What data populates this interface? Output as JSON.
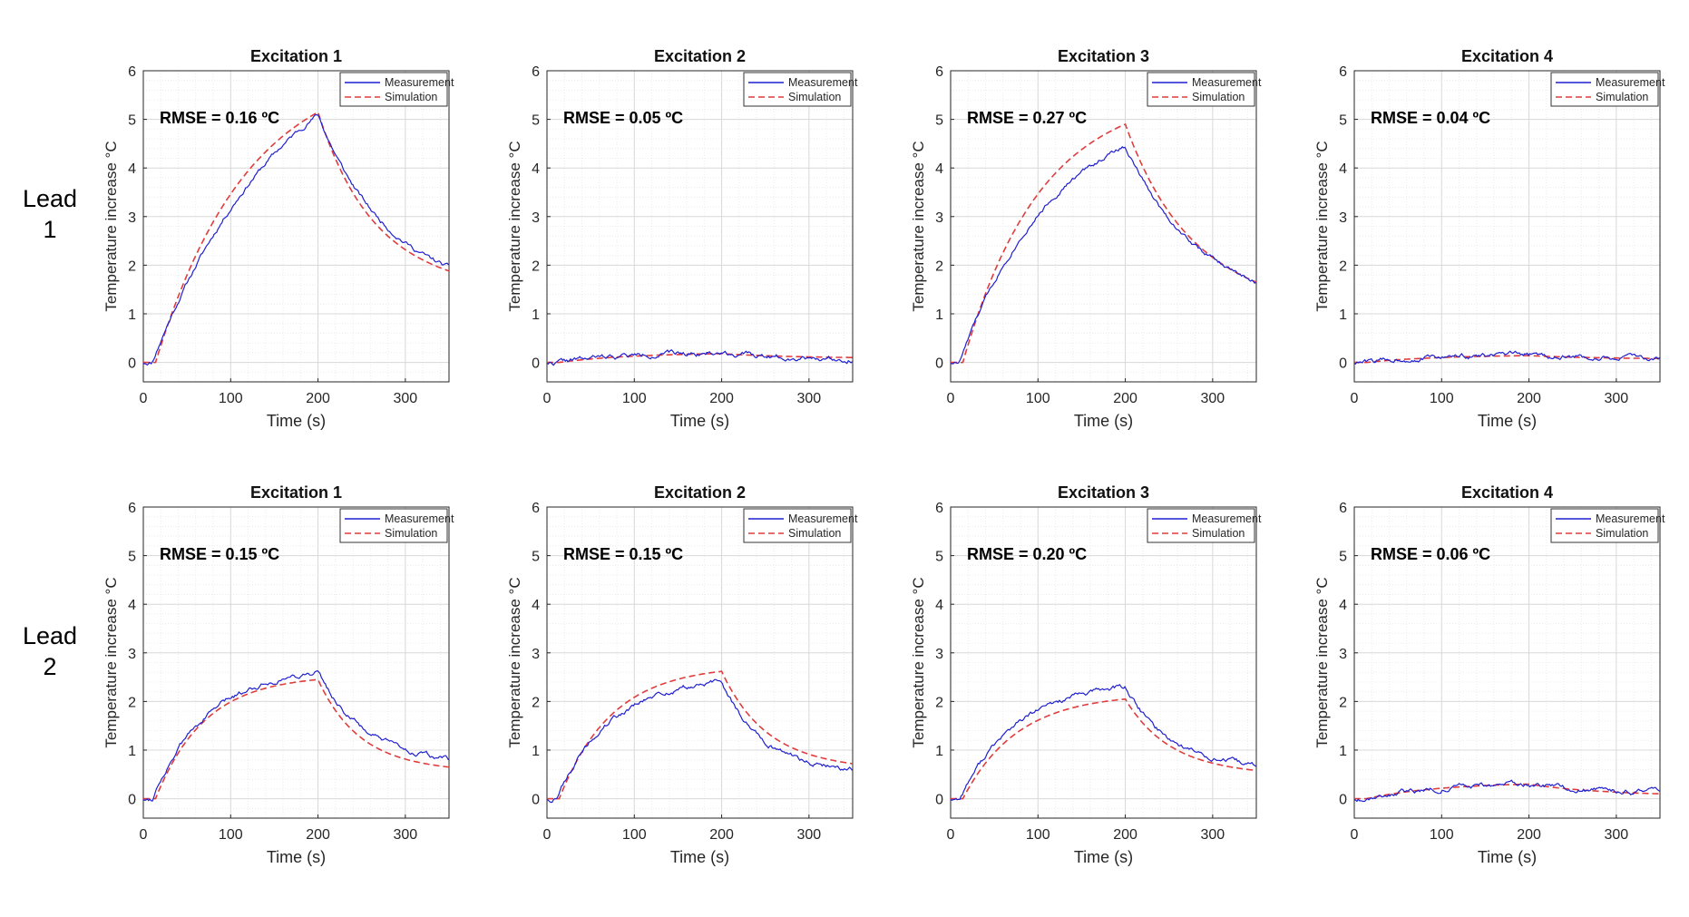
{
  "row_labels": [
    {
      "word": "Lead",
      "num": "1"
    },
    {
      "word": "Lead",
      "num": "2"
    }
  ],
  "colors": {
    "measurement": "#1f1fd0",
    "simulation": "#e03c3c",
    "grid_major": "#d8d8d8",
    "grid_minor": "#ececec",
    "axis": "#262626"
  },
  "chart_data": [
    {
      "type": "line",
      "row": 1,
      "col": 1,
      "title": "Excitation 1",
      "xlabel": "Time (s)",
      "ylabel": "Temperature increase °C",
      "xlim": [
        0,
        350
      ],
      "ylim": [
        -0.4,
        6
      ],
      "xticks": [
        0,
        100,
        200,
        300
      ],
      "yticks": [
        0,
        1,
        2,
        3,
        4,
        5,
        6
      ],
      "legend": [
        "Measurement",
        "Simulation"
      ],
      "legend_position": "top-right",
      "annotation": "RMSE = 0.16 ºC",
      "rise_end": 200,
      "peak_meas": 5.1,
      "end_meas": 1.95,
      "rise_k": 0.55,
      "decay_k": 1.05,
      "noise": 0.04,
      "seed": 11,
      "peak_sim": 5.15,
      "end_sim": 1.88,
      "sim_rise_k": 0.8,
      "sim_decay_k": 1.25
    },
    {
      "type": "line",
      "row": 1,
      "col": 2,
      "title": "Excitation 2",
      "xlabel": "Time (s)",
      "ylabel": "Temperature increase °C",
      "xlim": [
        0,
        350
      ],
      "ylim": [
        -0.4,
        6
      ],
      "xticks": [
        0,
        100,
        200,
        300
      ],
      "yticks": [
        0,
        1,
        2,
        3,
        4,
        5,
        6
      ],
      "legend": [
        "Measurement",
        "Simulation"
      ],
      "legend_position": "top-right",
      "annotation": "RMSE = 0.05 ºC",
      "rise_end": 200,
      "peak_meas": 0.2,
      "end_meas": 0.08,
      "rise_k": 1.0,
      "decay_k": 1.0,
      "noise": 0.045,
      "seed": 22,
      "peak_sim": 0.18,
      "end_sim": 0.1,
      "sim_rise_k": 1.0,
      "sim_decay_k": 1.0
    },
    {
      "type": "line",
      "row": 1,
      "col": 3,
      "title": "Excitation 3",
      "xlabel": "Time (s)",
      "ylabel": "Temperature increase °C",
      "xlim": [
        0,
        350
      ],
      "ylim": [
        -0.4,
        6
      ],
      "xticks": [
        0,
        100,
        200,
        300
      ],
      "yticks": [
        0,
        1,
        2,
        3,
        4,
        5,
        6
      ],
      "legend": [
        "Measurement",
        "Simulation"
      ],
      "legend_position": "top-right",
      "annotation": "RMSE = 0.27 ºC",
      "rise_end": 200,
      "peak_meas": 4.45,
      "end_meas": 1.65,
      "rise_k": 0.8,
      "decay_k": 1.0,
      "noise": 0.04,
      "seed": 33,
      "peak_sim": 4.9,
      "end_sim": 1.65,
      "sim_rise_k": 0.95,
      "sim_decay_k": 1.1
    },
    {
      "type": "line",
      "row": 1,
      "col": 4,
      "title": "Excitation 4",
      "xlabel": "Time (s)",
      "ylabel": "Temperature increase °C",
      "xlim": [
        0,
        350
      ],
      "ylim": [
        -0.4,
        6
      ],
      "xticks": [
        0,
        100,
        200,
        300
      ],
      "yticks": [
        0,
        1,
        2,
        3,
        4,
        5,
        6
      ],
      "legend": [
        "Measurement",
        "Simulation"
      ],
      "legend_position": "top-right",
      "annotation": "RMSE = 0.04 ºC",
      "rise_end": 200,
      "peak_meas": 0.15,
      "end_meas": 0.08,
      "rise_k": 1.0,
      "decay_k": 1.0,
      "noise": 0.045,
      "seed": 44,
      "peak_sim": 0.14,
      "end_sim": 0.08,
      "sim_rise_k": 1.0,
      "sim_decay_k": 1.0
    },
    {
      "type": "line",
      "row": 2,
      "col": 1,
      "title": "Excitation 1",
      "xlabel": "Time (s)",
      "ylabel": "Temperature increase °C",
      "xlim": [
        0,
        350
      ],
      "ylim": [
        -0.4,
        6
      ],
      "xticks": [
        0,
        100,
        200,
        300
      ],
      "yticks": [
        0,
        1,
        2,
        3,
        4,
        5,
        6
      ],
      "legend": [
        "Measurement",
        "Simulation"
      ],
      "legend_position": "top-right",
      "annotation": "RMSE = 0.15 ºC",
      "rise_end": 200,
      "peak_meas": 2.6,
      "end_meas": 0.8,
      "rise_k": 1.35,
      "decay_k": 1.4,
      "noise": 0.045,
      "seed": 55,
      "peak_sim": 2.45,
      "end_sim": 0.65,
      "sim_rise_k": 1.5,
      "sim_decay_k": 1.6
    },
    {
      "type": "line",
      "row": 2,
      "col": 2,
      "title": "Excitation 2",
      "xlabel": "Time (s)",
      "ylabel": "Temperature increase °C",
      "xlim": [
        0,
        350
      ],
      "ylim": [
        -0.4,
        6
      ],
      "xticks": [
        0,
        100,
        200,
        300
      ],
      "yticks": [
        0,
        1,
        2,
        3,
        4,
        5,
        6
      ],
      "legend": [
        "Measurement",
        "Simulation"
      ],
      "legend_position": "top-right",
      "annotation": "RMSE = 0.15 ºC",
      "rise_end": 200,
      "peak_meas": 2.4,
      "end_meas": 0.6,
      "rise_k": 1.35,
      "decay_k": 1.6,
      "noise": 0.045,
      "seed": 66,
      "peak_sim": 2.62,
      "end_sim": 0.72,
      "sim_rise_k": 1.4,
      "sim_decay_k": 1.5
    },
    {
      "type": "line",
      "row": 2,
      "col": 3,
      "title": "Excitation 3",
      "xlabel": "Time (s)",
      "ylabel": "Temperature increase °C",
      "xlim": [
        0,
        350
      ],
      "ylim": [
        -0.4,
        6
      ],
      "xticks": [
        0,
        100,
        200,
        300
      ],
      "yticks": [
        0,
        1,
        2,
        3,
        4,
        5,
        6
      ],
      "legend": [
        "Measurement",
        "Simulation"
      ],
      "legend_position": "top-right",
      "annotation": "RMSE = 0.20 ºC",
      "rise_end": 200,
      "peak_meas": 2.3,
      "end_meas": 0.68,
      "rise_k": 1.3,
      "decay_k": 1.5,
      "noise": 0.045,
      "seed": 77,
      "peak_sim": 2.05,
      "end_sim": 0.58,
      "sim_rise_k": 1.35,
      "sim_decay_k": 1.5
    },
    {
      "type": "line",
      "row": 2,
      "col": 4,
      "title": "Excitation 4",
      "xlabel": "Time (s)",
      "ylabel": "Temperature increase °C",
      "xlim": [
        0,
        350
      ],
      "ylim": [
        -0.4,
        6
      ],
      "xticks": [
        0,
        100,
        200,
        300
      ],
      "yticks": [
        0,
        1,
        2,
        3,
        4,
        5,
        6
      ],
      "legend": [
        "Measurement",
        "Simulation"
      ],
      "legend_position": "top-right",
      "annotation": "RMSE = 0.06 ºC",
      "rise_end": 200,
      "peak_meas": 0.3,
      "end_meas": 0.12,
      "rise_k": 1.0,
      "decay_k": 1.0,
      "noise": 0.045,
      "seed": 88,
      "peak_sim": 0.3,
      "end_sim": 0.1,
      "sim_rise_k": 1.0,
      "sim_decay_k": 1.0
    }
  ]
}
